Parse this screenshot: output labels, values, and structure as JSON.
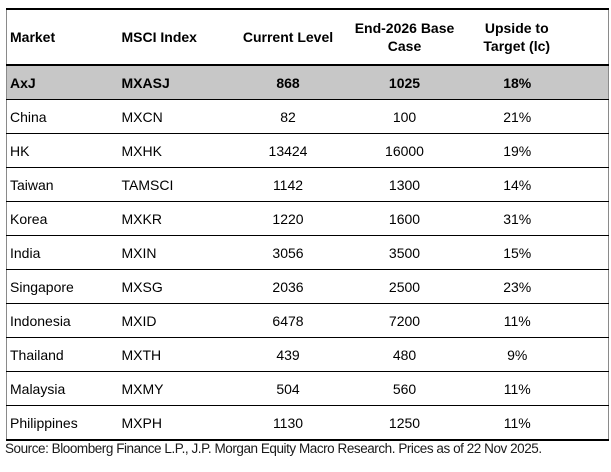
{
  "table": {
    "columns": [
      {
        "label": "Market"
      },
      {
        "label": "MSCI Index"
      },
      {
        "label": "Current Level"
      },
      {
        "label": "End-2026 Base Case"
      },
      {
        "label": "Upside to Target (lc)"
      }
    ],
    "rows": [
      {
        "market": "AxJ",
        "msci_index": "MXASJ",
        "current_level": "868",
        "end_2026_base_case": "1025",
        "upside_to_target": "18%",
        "highlighted": true
      },
      {
        "market": "China",
        "msci_index": "MXCN",
        "current_level": "82",
        "end_2026_base_case": "100",
        "upside_to_target": "21%",
        "highlighted": false
      },
      {
        "market": "HK",
        "msci_index": "MXHK",
        "current_level": "13424",
        "end_2026_base_case": "16000",
        "upside_to_target": "19%",
        "highlighted": false
      },
      {
        "market": "Taiwan",
        "msci_index": "TAMSCI",
        "current_level": "1142",
        "end_2026_base_case": "1300",
        "upside_to_target": "14%",
        "highlighted": false
      },
      {
        "market": "Korea",
        "msci_index": "MXKR",
        "current_level": "1220",
        "end_2026_base_case": "1600",
        "upside_to_target": "31%",
        "highlighted": false
      },
      {
        "market": "India",
        "msci_index": "MXIN",
        "current_level": "3056",
        "end_2026_base_case": "3500",
        "upside_to_target": "15%",
        "highlighted": false
      },
      {
        "market": "Singapore",
        "msci_index": "MXSG",
        "current_level": "2036",
        "end_2026_base_case": "2500",
        "upside_to_target": "23%",
        "highlighted": false
      },
      {
        "market": "Indonesia",
        "msci_index": "MXID",
        "current_level": "6478",
        "end_2026_base_case": "7200",
        "upside_to_target": "11%",
        "highlighted": false
      },
      {
        "market": "Thailand",
        "msci_index": "MXTH",
        "current_level": "439",
        "end_2026_base_case": "480",
        "upside_to_target": "9%",
        "highlighted": false
      },
      {
        "market": "Malaysia",
        "msci_index": "MXMY",
        "current_level": "504",
        "end_2026_base_case": "560",
        "upside_to_target": "11%",
        "highlighted": false
      },
      {
        "market": "Philippines",
        "msci_index": "MXPH",
        "current_level": "1130",
        "end_2026_base_case": "1250",
        "upside_to_target": "11%",
        "highlighted": false
      }
    ]
  },
  "footer": {
    "source": "Source: Bloomberg Finance L.P., J.P. Morgan Equity Macro Research. Prices as of 22 Nov 2025."
  },
  "colors": {
    "highlight_row_bg": "#c7c7c7",
    "border_dark": "#000000",
    "border_light": "#8a8a8a",
    "text": "#000000"
  }
}
